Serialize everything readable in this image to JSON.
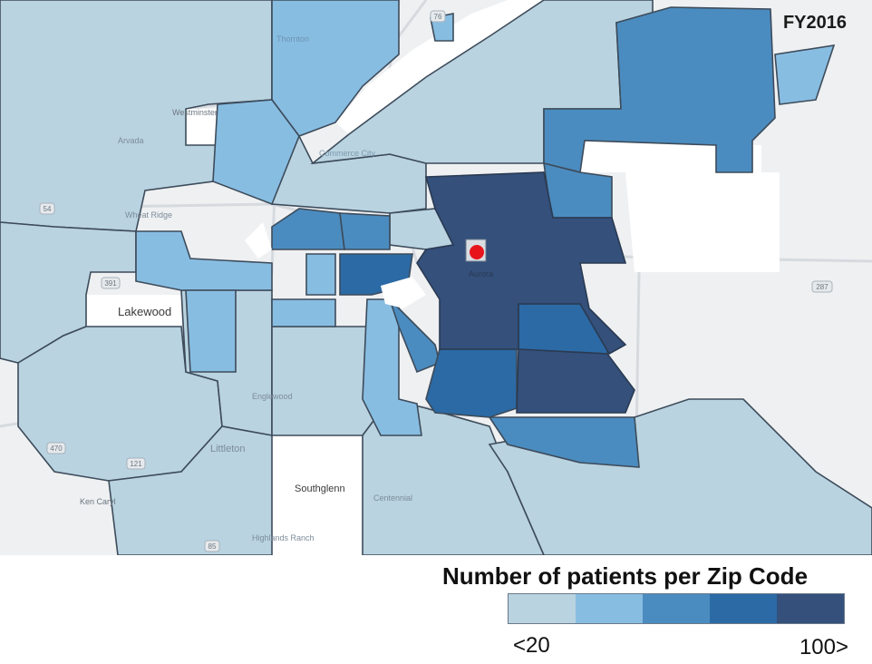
{
  "year": "FY2016",
  "legend": {
    "title": "Number of patients per Zip Code",
    "min_label": "<20",
    "max_label": "100>",
    "colors": [
      "#b9d3e0",
      "#88bde2",
      "#4b8cc0",
      "#2b6aa5",
      "#34507b"
    ]
  },
  "map_labels": {
    "lakewood": "Lakewood",
    "southglenn": "Southglenn",
    "littleton": "Littleton",
    "aurora": "Aurora",
    "thornton": "Thornton",
    "commerce_city": "Commerce City",
    "ken_caryl": "Ken Caryl",
    "highlands_ranch": "Highlands Ranch",
    "centennial": "Centennial",
    "englewood": "Englewood",
    "wheat_ridge": "Wheat Ridge",
    "westminster": "Westminster",
    "arvada": "Arvada"
  },
  "road_shields": {
    "i76": "76",
    "us287": "287",
    "rt54": "54",
    "rt391": "391",
    "rt470": "470",
    "rt121": "121",
    "rt85": "85"
  },
  "marker_color": "#e8141c"
}
